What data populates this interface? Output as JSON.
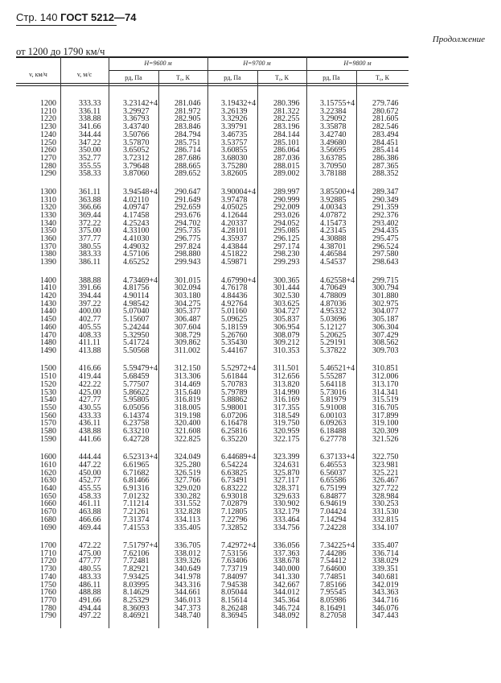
{
  "page_header": {
    "page": "Стр. 140",
    "standard": "ГОСТ 5212—74"
  },
  "continuation": "Продолжение",
  "range_title": "от 1200 до 1790 км/ч",
  "table": {
    "col_v_kmh": "v, км/ч",
    "col_v_ms": "v, м/с",
    "groups": [
      {
        "label": "H=9600 м",
        "p": "pд, Па",
        "t": "T₀, К"
      },
      {
        "label": "H=9700 м",
        "p": "pд, Па",
        "t": "T₀, К"
      },
      {
        "label": "H=9800 м",
        "p": "pд, Па",
        "t": "T₀, К"
      }
    ],
    "rows": [
      [
        "1200",
        "333.33",
        "3.23142+4",
        "281.046",
        "3.19432+4",
        "280.396",
        "3.15755+4",
        "279.746"
      ],
      [
        "1210",
        "336.11",
        "3.29927",
        "281.972",
        "3.26139",
        "281.322",
        "3.22384",
        "280.672"
      ],
      [
        "1220",
        "338.88",
        "3.36793",
        "282.905",
        "3.32926",
        "282.255",
        "3.29092",
        "281.605"
      ],
      [
        "1230",
        "341.66",
        "3.43740",
        "283.846",
        "3.39791",
        "283.196",
        "3.35878",
        "282.546"
      ],
      [
        "1240",
        "344.44",
        "3.50766",
        "284.794",
        "3.46735",
        "284.144",
        "3.42740",
        "283.494"
      ],
      [
        "1250",
        "347.22",
        "3.57870",
        "285.751",
        "3.53757",
        "285.101",
        "3.49680",
        "284.451"
      ],
      [
        "1260",
        "350.00",
        "3.65052",
        "286.714",
        "3.60855",
        "286.064",
        "3.56695",
        "285.414"
      ],
      [
        "1270",
        "352.77",
        "3.72312",
        "287.686",
        "3.68030",
        "287.036",
        "3.63785",
        "286.386"
      ],
      [
        "1280",
        "355.55",
        "3.79648",
        "288.665",
        "3.75280",
        "288.015",
        "3.70950",
        "287.365"
      ],
      [
        "1290",
        "358.33",
        "3.87060",
        "289.652",
        "3.82605",
        "289.002",
        "3.78188",
        "288.352"
      ],
      [
        "1300",
        "361.11",
        "3.94548+4",
        "290.647",
        "3.90004+4",
        "289.997",
        "3.85500+4",
        "289.347"
      ],
      [
        "1310",
        "363.88",
        "4.02110",
        "291.649",
        "3.97478",
        "290.999",
        "3.92885",
        "290.349"
      ],
      [
        "1320",
        "366.66",
        "4.09747",
        "292.659",
        "4.05025",
        "292.009",
        "4.00343",
        "291.359"
      ],
      [
        "1330",
        "369.44",
        "4.17458",
        "293.676",
        "4.12644",
        "293.026",
        "4.07872",
        "292.376"
      ],
      [
        "1340",
        "372.22",
        "4.25243",
        "294.702",
        "4.20337",
        "294.052",
        "4.15473",
        "293.402"
      ],
      [
        "1350",
        "375.00",
        "4.33100",
        "295.735",
        "4.28101",
        "295.085",
        "4.23145",
        "294.435"
      ],
      [
        "1360",
        "377.77",
        "4.41030",
        "296.775",
        "4.35937",
        "296.125",
        "4.30888",
        "295.475"
      ],
      [
        "1370",
        "380.55",
        "4.49032",
        "297.824",
        "4.43844",
        "297.174",
        "4.38701",
        "296.524"
      ],
      [
        "1380",
        "383.33",
        "4.57106",
        "298.880",
        "4.51822",
        "298.230",
        "4.46584",
        "297.580"
      ],
      [
        "1390",
        "386.11",
        "4.65252",
        "299.943",
        "4.59871",
        "299.293",
        "4.54537",
        "298.643"
      ],
      [
        "1400",
        "388.88",
        "4.73469+4",
        "301.015",
        "4.67990+4",
        "300.365",
        "4.62558+4",
        "299.715"
      ],
      [
        "1410",
        "391.66",
        "4.81756",
        "302.094",
        "4.76178",
        "301.444",
        "4.70649",
        "300.794"
      ],
      [
        "1420",
        "394.44",
        "4.90114",
        "303.180",
        "4.84436",
        "302.530",
        "4.78809",
        "301.880"
      ],
      [
        "1430",
        "397.22",
        "4.98542",
        "304.275",
        "4.92764",
        "303.625",
        "4.87036",
        "302.975"
      ],
      [
        "1440",
        "400.00",
        "5.07040",
        "305.377",
        "5.01160",
        "304.727",
        "4.95332",
        "304.077"
      ],
      [
        "1450",
        "402.77",
        "5.15607",
        "306.487",
        "5.09625",
        "305.837",
        "5.03696",
        "305.187"
      ],
      [
        "1460",
        "405.55",
        "5.24244",
        "307.604",
        "5.18159",
        "306.954",
        "5.12127",
        "306.304"
      ],
      [
        "1470",
        "408.33",
        "5.32950",
        "308.729",
        "5.26760",
        "308.079",
        "5.20625",
        "307.429"
      ],
      [
        "1480",
        "411.11",
        "5.41724",
        "309.862",
        "5.35430",
        "309.212",
        "5.29191",
        "308.562"
      ],
      [
        "1490",
        "413.88",
        "5.50568",
        "311.002",
        "5.44167",
        "310.353",
        "5.37822",
        "309.703"
      ],
      [
        "1500",
        "416.66",
        "5.59479+4",
        "312.150",
        "5.52972+4",
        "311.501",
        "5.46521+4",
        "310.851"
      ],
      [
        "1510",
        "419.44",
        "5.68459",
        "313.306",
        "5.61844",
        "312.656",
        "5.55287",
        "312.006"
      ],
      [
        "1520",
        "422.22",
        "5.77507",
        "314.469",
        "5.70783",
        "313.820",
        "5.64118",
        "313.170"
      ],
      [
        "1530",
        "425.00",
        "5.86622",
        "315.640",
        "5.79789",
        "314.990",
        "5.73016",
        "314.341"
      ],
      [
        "1540",
        "427.77",
        "5.95805",
        "316.819",
        "5.88862",
        "316.169",
        "5.81979",
        "315.519"
      ],
      [
        "1550",
        "430.55",
        "6.05056",
        "318.005",
        "5.98001",
        "317.355",
        "5.91008",
        "316.705"
      ],
      [
        "1560",
        "433.33",
        "6.14374",
        "319.198",
        "6.07206",
        "318.549",
        "6.00103",
        "317.899"
      ],
      [
        "1570",
        "436.11",
        "6.23758",
        "320.400",
        "6.16478",
        "319.750",
        "6.09263",
        "319.100"
      ],
      [
        "1580",
        "438.88",
        "6.33210",
        "321.608",
        "6.25816",
        "320.959",
        "6.18488",
        "320.309"
      ],
      [
        "1590",
        "441.66",
        "6.42728",
        "322.825",
        "6.35220",
        "322.175",
        "6.27778",
        "321.526"
      ],
      [
        "1600",
        "444.44",
        "6.52313+4",
        "324.049",
        "6.44689+4",
        "323.399",
        "6.37133+4",
        "322.750"
      ],
      [
        "1610",
        "447.22",
        "6.61965",
        "325.280",
        "6.54224",
        "324.631",
        "6.46553",
        "323.981"
      ],
      [
        "1620",
        "450.00",
        "6.71682",
        "326.519",
        "6.63825",
        "325.870",
        "6.56037",
        "325.221"
      ],
      [
        "1630",
        "452.77",
        "6.81466",
        "327.766",
        "6.73491",
        "327.117",
        "6.65586",
        "326.467"
      ],
      [
        "1640",
        "455.55",
        "6.91316",
        "329.020",
        "6.83222",
        "328.371",
        "6.75199",
        "327.722"
      ],
      [
        "1650",
        "458.33",
        "7.01232",
        "330.282",
        "6.93018",
        "329.633",
        "6.84877",
        "328.984"
      ],
      [
        "1660",
        "461.11",
        "7.11214",
        "331.552",
        "7.02879",
        "330.902",
        "6.94619",
        "330.253"
      ],
      [
        "1670",
        "463.88",
        "7.21261",
        "332.828",
        "7.12805",
        "332.179",
        "7.04424",
        "331.530"
      ],
      [
        "1680",
        "466.66",
        "7.31374",
        "334.113",
        "7.22796",
        "333.464",
        "7.14294",
        "332.815"
      ],
      [
        "1690",
        "469.44",
        "7.41553",
        "335.405",
        "7.32852",
        "334.756",
        "7.24228",
        "334.107"
      ],
      [
        "1700",
        "472.22",
        "7.51797+4",
        "336.705",
        "7.42972+4",
        "336.056",
        "7.34225+4",
        "335.407"
      ],
      [
        "1710",
        "475.00",
        "7.62106",
        "338.012",
        "7.53156",
        "337.363",
        "7.44286",
        "336.714"
      ],
      [
        "1720",
        "477.77",
        "7.72481",
        "339.326",
        "7.63406",
        "338.678",
        "7.54412",
        "338.029"
      ],
      [
        "1730",
        "480.55",
        "7.82921",
        "340.649",
        "7.73719",
        "340.000",
        "7.64600",
        "339.351"
      ],
      [
        "1740",
        "483.33",
        "7.93425",
        "341.978",
        "7.84097",
        "341.330",
        "7.74851",
        "340.681"
      ],
      [
        "1750",
        "486.11",
        "8.03995",
        "343.316",
        "7.94538",
        "342.667",
        "7.85166",
        "342.019"
      ],
      [
        "1760",
        "488.88",
        "8.14629",
        "344.661",
        "8.05044",
        "344.012",
        "7.95545",
        "343.363"
      ],
      [
        "1770",
        "491.66",
        "8.25329",
        "346.013",
        "8.15614",
        "345.364",
        "8.05986",
        "344.716"
      ],
      [
        "1780",
        "494.44",
        "8.36093",
        "347.373",
        "8.26248",
        "346.724",
        "8.16491",
        "346.076"
      ],
      [
        "1790",
        "497.22",
        "8.46921",
        "348.740",
        "8.36945",
        "348.092",
        "8.27058",
        "347.443"
      ]
    ]
  }
}
